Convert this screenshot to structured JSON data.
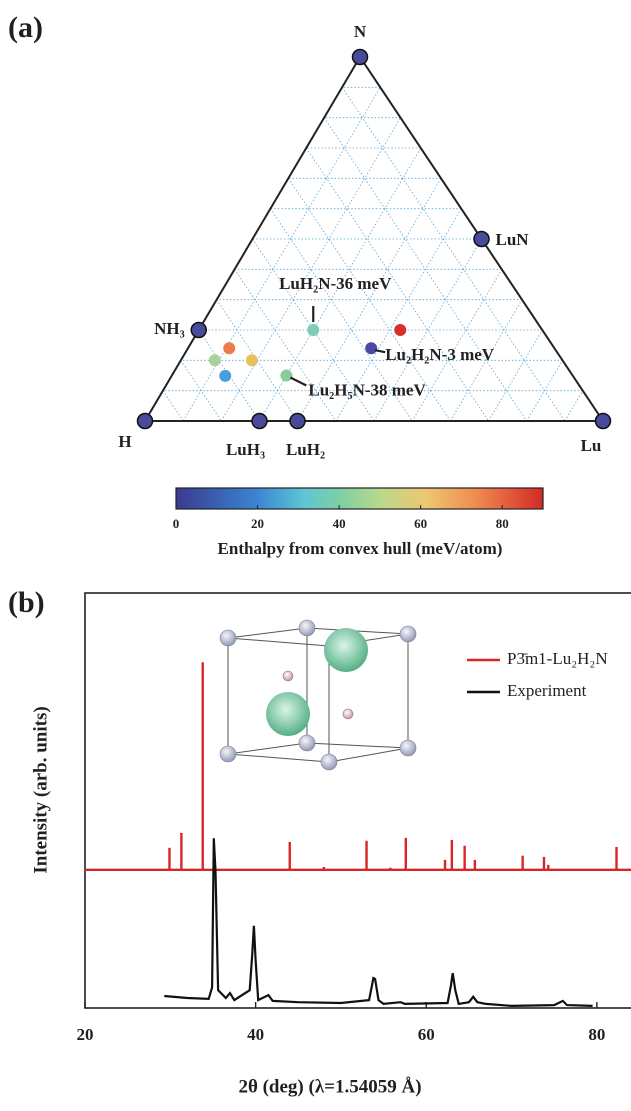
{
  "chart_data": [
    {
      "type": "ternary",
      "panel_label": "(a)",
      "grid_divisions": 12,
      "vertices": {
        "top": "N",
        "left": "H",
        "right": "Lu"
      },
      "points": [
        {
          "label": "N",
          "composition": {
            "H": 0,
            "N": 1,
            "Lu": 0
          },
          "energy": 0,
          "color": "#4a4a9c"
        },
        {
          "label": "H",
          "composition": {
            "H": 1,
            "N": 0,
            "Lu": 0
          },
          "energy": 0,
          "color": "#4a4a9c"
        },
        {
          "label": "Lu",
          "composition": {
            "H": 0,
            "N": 0,
            "Lu": 1
          },
          "energy": 0,
          "color": "#4a4a9c"
        },
        {
          "label": "LuN",
          "composition": {
            "H": 0,
            "N": 0.5,
            "Lu": 0.5
          },
          "energy": 0,
          "color": "#4a4a9c"
        },
        {
          "label": "NH₃",
          "composition": {
            "H": 0.75,
            "N": 0.25,
            "Lu": 0
          },
          "energy": 0,
          "color": "#4a4a9c"
        },
        {
          "label": "LuH₃",
          "composition": {
            "H": 0.75,
            "N": 0,
            "Lu": 0.25
          },
          "energy": 0,
          "color": "#4a4a9c"
        },
        {
          "label": "LuH₂",
          "composition": {
            "H": 0.667,
            "N": 0,
            "Lu": 0.333
          },
          "energy": 0,
          "color": "#4a4a9c"
        },
        {
          "label": "LuH₂N-36 meV",
          "composition": {
            "H": 0.5,
            "N": 0.25,
            "Lu": 0.25
          },
          "energy": 36,
          "color": "#80cdb5"
        },
        {
          "label": "Lu₂H₂N-3 meV",
          "composition": {
            "H": 0.4,
            "N": 0.2,
            "Lu": 0.4
          },
          "energy": 3,
          "color": "#4b48a6"
        },
        {
          "label": "Lu₂H₅N-38 meV",
          "composition": {
            "H": 0.625,
            "N": 0.125,
            "Lu": 0.25
          },
          "energy": 38,
          "color": "#88cc9c"
        },
        {
          "label": null,
          "composition": {
            "H": 0.31,
            "N": 0.25,
            "Lu": 0.44
          },
          "energy": 85,
          "color": "#d7302a"
        },
        {
          "label": null,
          "composition": {
            "H": 0.71,
            "N": 0.2,
            "Lu": 0.09
          },
          "energy": 70,
          "color": "#ef7b4c"
        },
        {
          "label": null,
          "composition": {
            "H": 0.678,
            "N": 0.167,
            "Lu": 0.155
          },
          "energy": 58,
          "color": "#e5c25c"
        },
        {
          "label": null,
          "composition": {
            "H": 0.759,
            "N": 0.167,
            "Lu": 0.074
          },
          "energy": 50,
          "color": "#a8d49c"
        },
        {
          "label": null,
          "composition": {
            "H": 0.759,
            "N": 0.124,
            "Lu": 0.117
          },
          "energy": 22,
          "color": "#4a9edb"
        }
      ],
      "colorbar": {
        "label": "Enthalpy from convex hull (meV/atom)",
        "clim": [
          0,
          90
        ],
        "ticks": [
          0,
          20,
          40,
          60,
          80
        ]
      }
    },
    {
      "type": "line",
      "panel_label": "(b)",
      "xlabel": "2θ (deg)  (λ=1.54059 Å)",
      "ylabel": "Intensity (arb. units)",
      "xlim": [
        20,
        84
      ],
      "xticks": [
        20,
        40,
        60,
        80
      ],
      "ylim": [
        0,
        100
      ],
      "legend": "upper right",
      "series": [
        {
          "name": "P3̄m1-Lu₂H₂N",
          "color": "#d62728",
          "style": "stick",
          "baseline": 33.3,
          "x": [
            29.9,
            31.3,
            33.8,
            44.0,
            48.0,
            53.0,
            55.8,
            57.6,
            62.2,
            63.0,
            64.5,
            65.7,
            71.3,
            73.8,
            74.3,
            82.3
          ],
          "y": [
            38.6,
            42.2,
            83.3,
            40.0,
            34.0,
            40.3,
            33.8,
            41.0,
            35.7,
            40.5,
            39.1,
            35.7,
            36.7,
            36.4,
            34.5,
            38.8
          ]
        },
        {
          "name": "Experiment",
          "color": "#111111",
          "style": "line",
          "x": [
            29.3,
            32,
            34.5,
            34.9,
            35.1,
            35.3,
            35.6,
            36.5,
            37,
            37.5,
            39.3,
            39.6,
            39.8,
            40.0,
            40.3,
            41.5,
            42,
            45,
            50,
            53.3,
            53.8,
            54.0,
            54.4,
            55,
            57,
            57.5,
            62.5,
            62.9,
            63.1,
            63.4,
            63.8,
            65,
            65.5,
            66,
            67,
            70,
            75,
            76,
            76.5,
            79.5
          ],
          "y": [
            2.9,
            2.4,
            2.2,
            5,
            40.9,
            33,
            4.3,
            2.4,
            3.6,
            1.9,
            4.3,
            12.8,
            19.8,
            11.6,
            1.9,
            3.1,
            1.7,
            1.4,
            1.2,
            1.9,
            7.2,
            7.0,
            1.9,
            1.0,
            1.4,
            1.0,
            1.2,
            5.5,
            8.4,
            4.3,
            1.0,
            1.4,
            2.7,
            1.4,
            1.0,
            0.5,
            0.7,
            1.7,
            0.7,
            0.5
          ]
        }
      ]
    }
  ]
}
